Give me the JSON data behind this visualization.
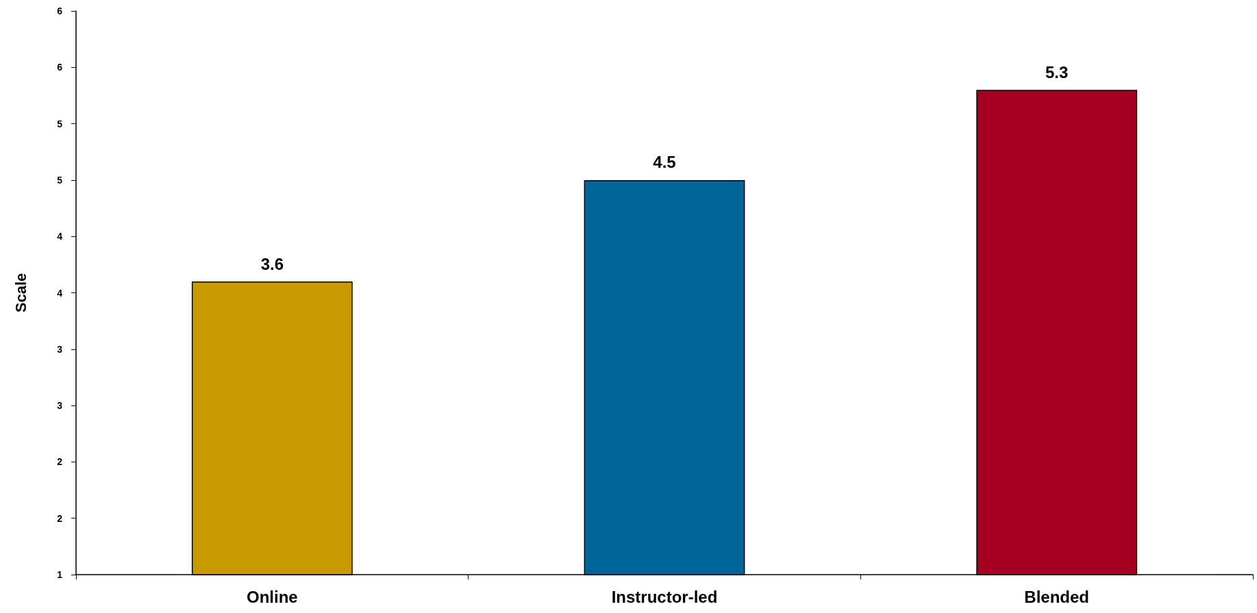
{
  "chart_data": {
    "type": "bar",
    "ylabel": "Scale",
    "categories": [
      "Online",
      "Instructor-led",
      "Blended"
    ],
    "values": [
      3.6,
      4.5,
      5.3
    ],
    "colors": [
      "#c99a00",
      "#006699",
      "#a50021"
    ],
    "ylim": [
      1,
      6
    ],
    "yticks": [
      1,
      {
        "value": 1.5,
        "label": "2"
      },
      2,
      {
        "value": 2.5,
        "label": "3"
      },
      3,
      {
        "value": 3.5,
        "label": "4"
      },
      4,
      {
        "value": 4.5,
        "label": "5"
      },
      5,
      {
        "value": 5.5,
        "label": "6"
      },
      6
    ],
    "grid": false,
    "data_labels": true
  }
}
